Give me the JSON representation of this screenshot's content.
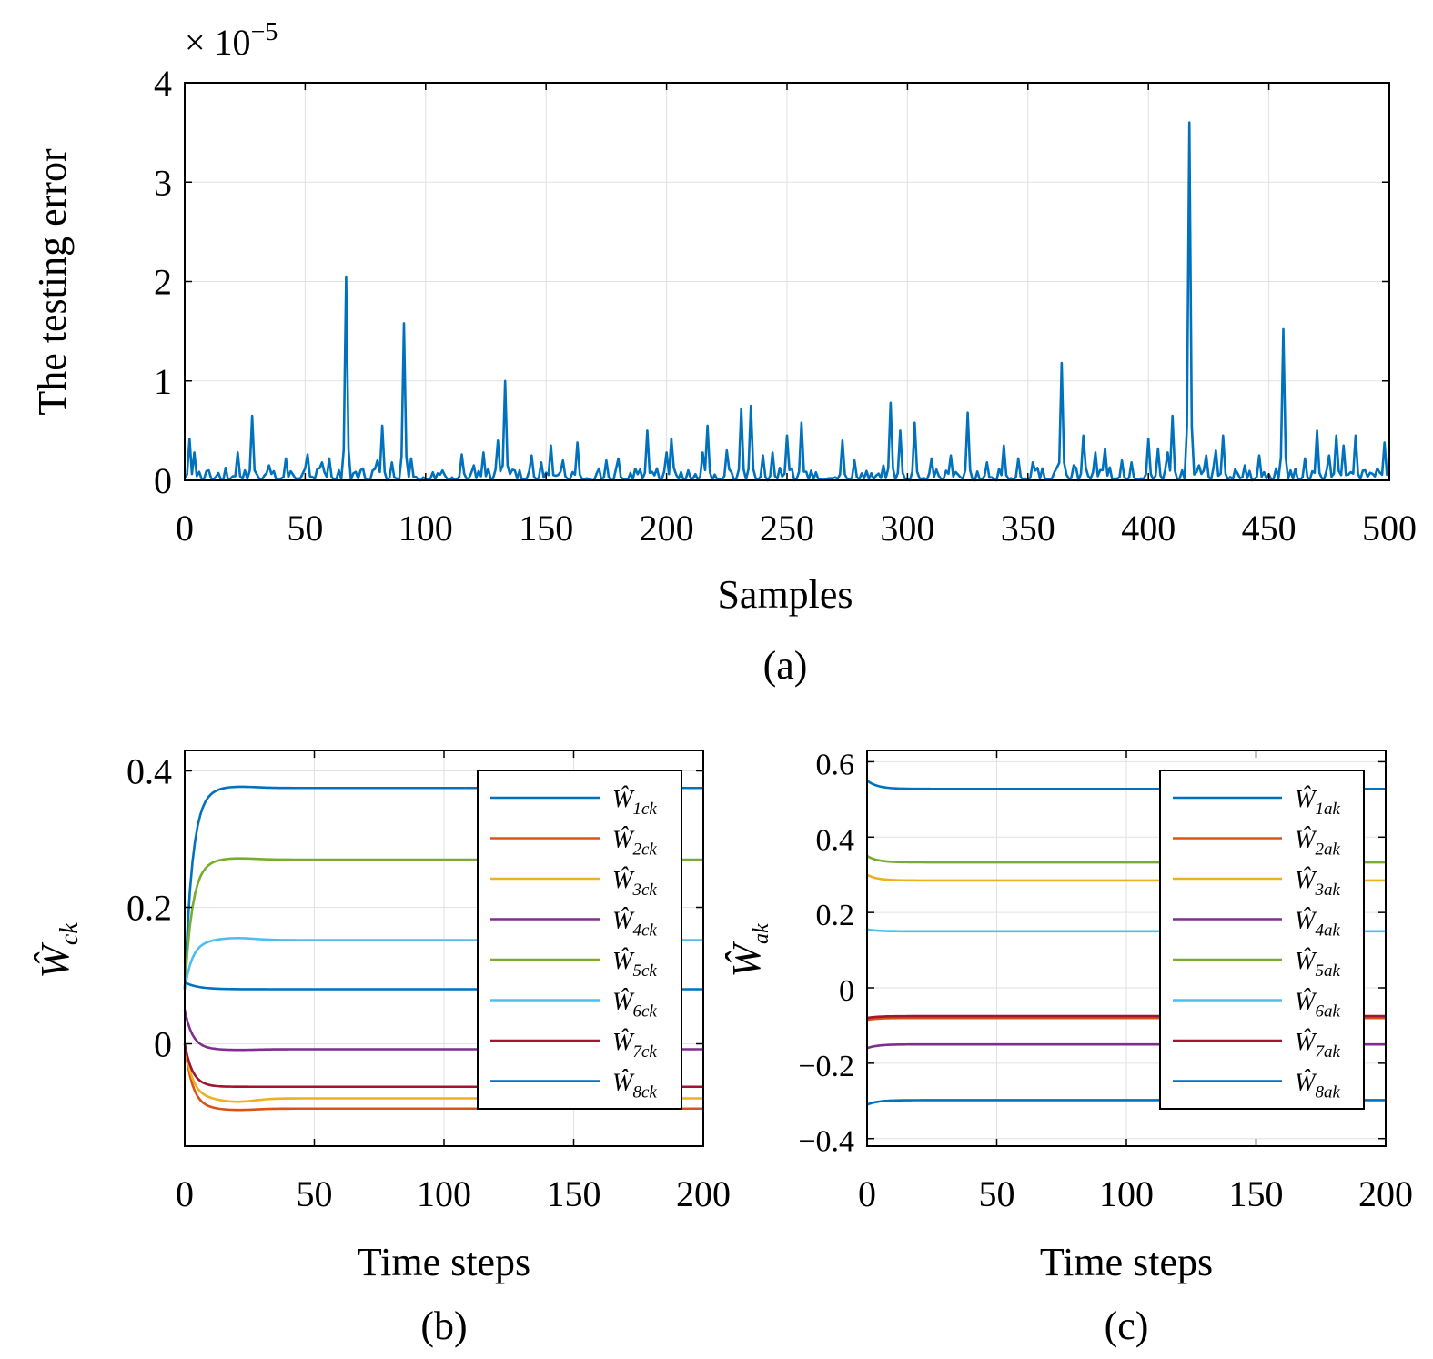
{
  "chart_data": [
    {
      "id": "a",
      "type": "line",
      "xlabel": "Samples",
      "ylabel": "The testing error",
      "exponent_label": "× 10",
      "exponent_power": "−5",
      "caption": "(a)",
      "xlim": [
        0,
        500
      ],
      "ylim": [
        0,
        4
      ],
      "xticks": [
        0,
        50,
        100,
        150,
        200,
        250,
        300,
        350,
        400,
        450,
        500
      ],
      "yticks": [
        0,
        1,
        2,
        3,
        4
      ],
      "grid": true,
      "color": "#0072BD",
      "peaks": [
        [
          2,
          0.42
        ],
        [
          4,
          0.28
        ],
        [
          10,
          0.1
        ],
        [
          22,
          0.28
        ],
        [
          25,
          0.1
        ],
        [
          28,
          0.65
        ],
        [
          35,
          0.15
        ],
        [
          42,
          0.22
        ],
        [
          50,
          0.12
        ],
        [
          51,
          0.26
        ],
        [
          57,
          0.18
        ],
        [
          60,
          0.22
        ],
        [
          67,
          2.05
        ],
        [
          73,
          0.1
        ],
        [
          80,
          0.2
        ],
        [
          82,
          0.55
        ],
        [
          86,
          0.18
        ],
        [
          91,
          1.58
        ],
        [
          94,
          0.22
        ],
        [
          103,
          0.08
        ],
        [
          115,
          0.26
        ],
        [
          120,
          0.15
        ],
        [
          124,
          0.28
        ],
        [
          130,
          0.4
        ],
        [
          133,
          1.0
        ],
        [
          137,
          0.1
        ],
        [
          144,
          0.25
        ],
        [
          148,
          0.18
        ],
        [
          152,
          0.35
        ],
        [
          157,
          0.2
        ],
        [
          163,
          0.38
        ],
        [
          175,
          0.2
        ],
        [
          180,
          0.22
        ],
        [
          192,
          0.5
        ],
        [
          196,
          0.12
        ],
        [
          200,
          0.28
        ],
        [
          202,
          0.42
        ],
        [
          209,
          0.1
        ],
        [
          215,
          0.28
        ],
        [
          217,
          0.55
        ],
        [
          225,
          0.3
        ],
        [
          231,
          0.72
        ],
        [
          235,
          0.75
        ],
        [
          240,
          0.25
        ],
        [
          244,
          0.28
        ],
        [
          250,
          0.45
        ],
        [
          256,
          0.58
        ],
        [
          262,
          0.08
        ],
        [
          273,
          0.4
        ],
        [
          278,
          0.2
        ],
        [
          290,
          0.15
        ],
        [
          293,
          0.78
        ],
        [
          297,
          0.5
        ],
        [
          303,
          0.58
        ],
        [
          310,
          0.22
        ],
        [
          318,
          0.25
        ],
        [
          325,
          0.68
        ],
        [
          333,
          0.18
        ],
        [
          340,
          0.35
        ],
        [
          346,
          0.22
        ],
        [
          352,
          0.18
        ],
        [
          356,
          0.12
        ],
        [
          364,
          1.18
        ],
        [
          369,
          0.15
        ],
        [
          373,
          0.45
        ],
        [
          378,
          0.28
        ],
        [
          382,
          0.32
        ],
        [
          389,
          0.2
        ],
        [
          393,
          0.18
        ],
        [
          400,
          0.42
        ],
        [
          404,
          0.32
        ],
        [
          408,
          0.28
        ],
        [
          410,
          0.65
        ],
        [
          414,
          0.1
        ],
        [
          417,
          3.6
        ],
        [
          421,
          0.15
        ],
        [
          424,
          0.25
        ],
        [
          428,
          0.3
        ],
        [
          431,
          0.45
        ],
        [
          440,
          0.15
        ],
        [
          446,
          0.25
        ],
        [
          453,
          0.12
        ],
        [
          456,
          1.52
        ],
        [
          459,
          0.1
        ],
        [
          465,
          0.22
        ],
        [
          470,
          0.5
        ],
        [
          475,
          0.25
        ],
        [
          478,
          0.45
        ],
        [
          481,
          0.35
        ],
        [
          486,
          0.45
        ],
        [
          490,
          0.1
        ],
        [
          495,
          0.12
        ],
        [
          498,
          0.38
        ]
      ]
    },
    {
      "id": "b",
      "type": "line",
      "xlabel": "Time steps",
      "ylabel": "Ŵ",
      "ylabel_sub": "ck",
      "caption": "(b)",
      "xlim": [
        0,
        200
      ],
      "ylim": [
        -0.15,
        0.43
      ],
      "xticks": [
        0,
        50,
        100,
        150,
        200
      ],
      "yticks": [
        0,
        0.2,
        0.4
      ],
      "ytick_labels": [
        "0",
        "0.2",
        "0.4"
      ],
      "grid": true,
      "legend_position": "top-right",
      "series": [
        {
          "name": "Ŵ",
          "sub": "1ck",
          "color": "#0072BD",
          "start": 0.08,
          "final": 0.375,
          "peak": 0.377,
          "tau": 3
        },
        {
          "name": "Ŵ",
          "sub": "2ck",
          "color": "#D95319",
          "start": 0.0,
          "final": -0.095,
          "peak": -0.097,
          "tau": 3
        },
        {
          "name": "Ŵ",
          "sub": "3ck",
          "color": "#EDB120",
          "start": 0.0,
          "final": -0.08,
          "peak": -0.085,
          "tau": 3
        },
        {
          "name": "Ŵ",
          "sub": "4ck",
          "color": "#7E2F8E",
          "start": 0.05,
          "final": -0.008,
          "peak": -0.009,
          "tau": 3
        },
        {
          "name": "Ŵ",
          "sub": "5ck",
          "color": "#77AC30",
          "start": 0.08,
          "final": 0.27,
          "peak": 0.272,
          "tau": 3
        },
        {
          "name": "Ŵ",
          "sub": "6ck",
          "color": "#4DBEEE",
          "start": 0.08,
          "final": 0.152,
          "peak": 0.155,
          "tau": 3
        },
        {
          "name": "Ŵ",
          "sub": "7ck",
          "color": "#A2142F",
          "start": 0.0,
          "final": -0.063,
          "peak": -0.063,
          "tau": 3
        },
        {
          "name": "Ŵ",
          "sub": "8ck",
          "color": "#0072BD",
          "start": 0.09,
          "final": 0.08,
          "peak": 0.08,
          "tau": 5
        }
      ]
    },
    {
      "id": "c",
      "type": "line",
      "xlabel": "Time steps",
      "ylabel": "Ŵ",
      "ylabel_sub": "ak",
      "caption": "(c)",
      "xlim": [
        0,
        200
      ],
      "ylim": [
        -0.42,
        0.63
      ],
      "xticks": [
        0,
        50,
        100,
        150,
        200
      ],
      "yticks": [
        -0.4,
        -0.2,
        0,
        0.2,
        0.4,
        0.6
      ],
      "ytick_labels": [
        "−0.4",
        "−0.2",
        "0",
        "0.2",
        "0.4",
        "0.6"
      ],
      "grid": true,
      "legend_position": "top-right",
      "series": [
        {
          "name": "Ŵ",
          "sub": "1ak",
          "color": "#0072BD",
          "start": 0.55,
          "final": 0.528,
          "peak": 0.528,
          "tau": 4
        },
        {
          "name": "Ŵ",
          "sub": "2ak",
          "color": "#D95319",
          "start": -0.085,
          "final": -0.08,
          "peak": -0.08,
          "tau": 4
        },
        {
          "name": "Ŵ",
          "sub": "3ak",
          "color": "#EDB120",
          "start": 0.3,
          "final": 0.285,
          "peak": 0.285,
          "tau": 4
        },
        {
          "name": "Ŵ",
          "sub": "4ak",
          "color": "#7E2F8E",
          "start": -0.16,
          "final": -0.15,
          "peak": -0.15,
          "tau": 4
        },
        {
          "name": "Ŵ",
          "sub": "5ak",
          "color": "#77AC30",
          "start": 0.35,
          "final": 0.333,
          "peak": 0.333,
          "tau": 4
        },
        {
          "name": "Ŵ",
          "sub": "6ak",
          "color": "#4DBEEE",
          "start": 0.155,
          "final": 0.15,
          "peak": 0.15,
          "tau": 4
        },
        {
          "name": "Ŵ",
          "sub": "7ak",
          "color": "#A2142F",
          "start": -0.08,
          "final": -0.075,
          "peak": -0.075,
          "tau": 4
        },
        {
          "name": "Ŵ",
          "sub": "8ak",
          "color": "#0072BD",
          "start": -0.31,
          "final": -0.298,
          "peak": -0.298,
          "tau": 4
        }
      ]
    }
  ]
}
